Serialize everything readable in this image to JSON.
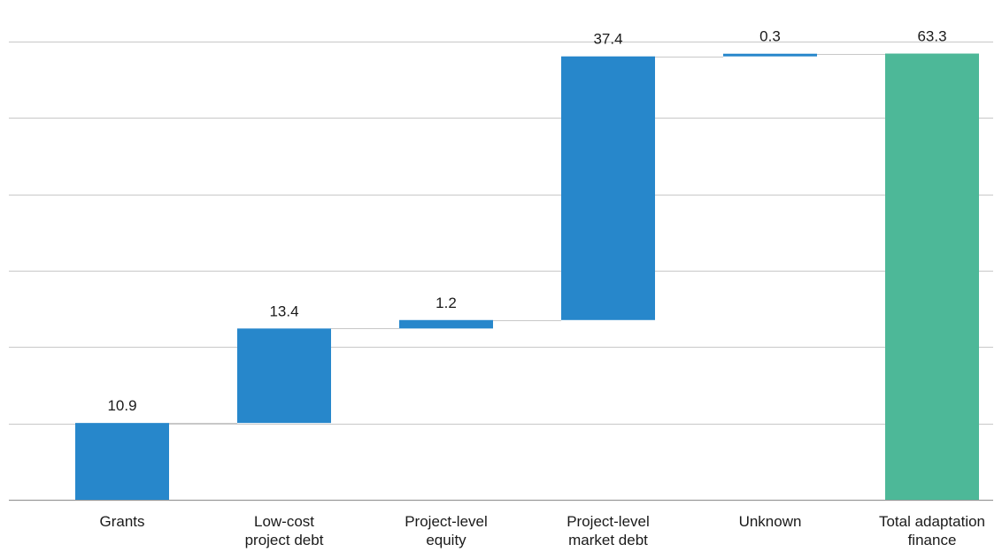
{
  "chart_data": {
    "type": "bar",
    "subtype": "waterfall",
    "title": "",
    "xlabel": "",
    "ylabel": "",
    "ylim": [
      0,
      65
    ],
    "y_gridlines": [
      0,
      10.833,
      21.667,
      32.5,
      43.333,
      54.167,
      65
    ],
    "y_tick_labels_shown": false,
    "grid": true,
    "legend": "none",
    "categories": [
      [
        "Grants"
      ],
      [
        "Low-cost",
        "project debt"
      ],
      [
        "Project-level",
        "equity"
      ],
      [
        "Project-level",
        "market debt"
      ],
      [
        "Unknown"
      ],
      [
        "Total adaptation",
        "finance"
      ]
    ],
    "values": [
      10.9,
      13.4,
      1.2,
      37.4,
      0.3,
      63.3
    ],
    "value_labels": [
      "10.9",
      "13.4",
      "1.2",
      "37.4",
      "0.3",
      "63.3"
    ],
    "is_total": [
      false,
      false,
      false,
      false,
      false,
      true
    ],
    "colors": {
      "increment": "#2787cb",
      "total": "#4db898"
    }
  }
}
